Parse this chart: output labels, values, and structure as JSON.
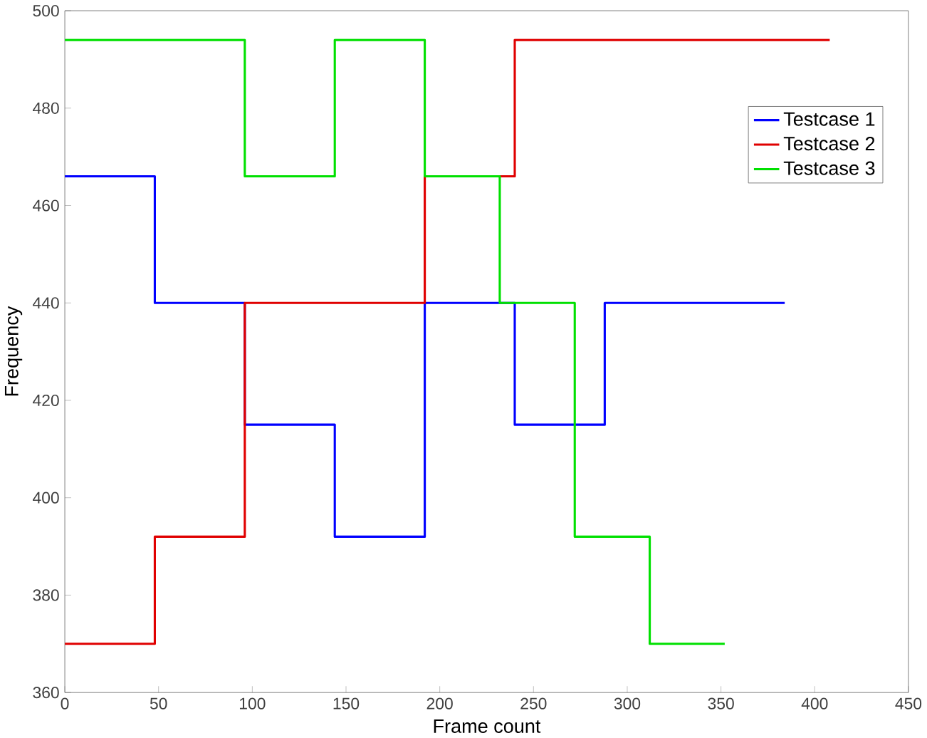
{
  "chart_data": {
    "type": "step",
    "xlabel": "Frame count",
    "ylabel": "Frequency",
    "xlim": [
      0,
      450
    ],
    "xticks": [
      0,
      50,
      100,
      150,
      200,
      250,
      300,
      350,
      400,
      450
    ],
    "ylim": [
      360,
      500
    ],
    "yticks": [
      360,
      380,
      400,
      420,
      440,
      460,
      480,
      500
    ],
    "legend": "top right",
    "grid": false,
    "line_style": "solid",
    "marker": "none",
    "series": [
      {
        "name": "Testcase 1",
        "color": "#0000ff",
        "x": [
          0,
          48,
          96,
          144,
          192,
          240,
          288,
          384
        ],
        "values": [
          466,
          440,
          415,
          392,
          440,
          415,
          440,
          440
        ]
      },
      {
        "name": "Testcase 2",
        "color": "#e00000",
        "x": [
          0,
          48,
          96,
          192,
          240,
          408
        ],
        "values": [
          370,
          392,
          440,
          466,
          494,
          494
        ]
      },
      {
        "name": "Testcase 3",
        "color": "#00e000",
        "x": [
          0,
          96,
          144,
          192,
          232,
          272,
          312,
          352
        ],
        "values": [
          494,
          466,
          494,
          466,
          440,
          392,
          370,
          370
        ]
      }
    ]
  }
}
